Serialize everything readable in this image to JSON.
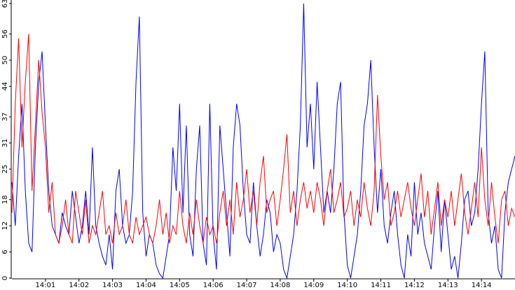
{
  "chart_data": {
    "type": "line",
    "x": [
      0,
      0.1,
      0.2,
      0.3,
      0.4,
      0.5,
      0.6,
      0.7,
      0.8,
      0.9,
      1,
      1.1,
      1.2,
      1.3,
      1.4,
      1.5,
      1.6,
      1.7,
      1.8,
      1.9,
      2,
      2.1,
      2.2,
      2.3,
      2.4,
      2.5,
      2.6,
      2.7,
      2.8,
      2.9,
      3,
      3.1,
      3.2,
      3.3,
      3.4,
      3.5,
      3.6,
      3.7,
      3.8,
      3.9,
      4,
      4.1,
      4.2,
      4.3,
      4.4,
      4.5,
      4.6,
      4.7,
      4.8,
      4.9,
      5,
      5.1,
      5.2,
      5.3,
      5.4,
      5.5,
      5.6,
      5.7,
      5.8,
      5.9,
      6,
      6.1,
      6.2,
      6.3,
      6.4,
      6.5,
      6.6,
      6.7,
      6.8,
      6.9,
      7,
      7.1,
      7.2,
      7.3,
      7.4,
      7.5,
      7.6,
      7.7,
      7.8,
      7.9,
      8,
      8.1,
      8.2,
      8.3,
      8.4,
      8.5,
      8.6,
      8.7,
      8.8,
      8.9,
      9,
      9.1,
      9.2,
      9.3,
      9.4,
      9.5,
      9.6,
      9.7,
      9.8,
      9.9,
      10,
      10.1,
      10.2,
      10.3,
      10.4,
      10.5,
      10.6,
      10.7,
      10.8,
      10.9,
      11,
      11.1,
      11.2,
      11.3,
      11.4,
      11.5,
      11.6,
      11.7,
      11.8,
      11.9,
      12,
      12.1,
      12.2,
      12.3,
      12.4,
      12.5,
      12.6,
      12.7,
      12.8,
      12.9,
      13,
      13.1,
      13.2,
      13.3,
      13.4,
      13.5,
      13.6,
      13.7,
      13.8,
      13.9,
      14,
      14.1,
      14.2,
      14.3,
      14.4,
      14.5,
      14.6,
      14.7,
      14.8,
      14.9,
      15
    ],
    "series": [
      {
        "color": "#0000ff",
        "values": [
          22,
          12,
          28,
          40,
          20,
          8,
          6,
          30,
          45,
          52,
          35,
          20,
          12,
          10,
          8,
          15,
          12,
          10,
          20,
          14,
          8,
          12,
          20,
          10,
          30,
          12,
          8,
          5,
          3,
          10,
          2,
          20,
          25,
          12,
          8,
          10,
          20,
          45,
          60,
          15,
          5,
          10,
          8,
          3,
          1,
          0,
          5,
          10,
          30,
          20,
          40,
          15,
          35,
          10,
          5,
          25,
          35,
          8,
          3,
          40,
          10,
          2,
          35,
          25,
          15,
          5,
          30,
          40,
          35,
          20,
          10,
          8,
          22,
          12,
          5,
          10,
          18,
          15,
          6,
          10,
          8,
          2,
          0,
          5,
          10,
          20,
          35,
          63,
          30,
          40,
          25,
          45,
          30,
          15,
          20,
          15,
          25,
          40,
          45,
          15,
          3,
          0,
          5,
          10,
          20,
          35,
          40,
          50,
          30,
          15,
          25,
          12,
          8,
          15,
          20,
          10,
          3,
          0,
          10,
          5,
          22,
          10,
          15,
          8,
          5,
          2,
          12,
          20,
          6,
          18,
          10,
          2,
          5,
          0,
          8,
          18,
          20,
          12,
          15,
          25,
          40,
          52,
          15,
          8,
          12,
          2,
          0,
          15,
          22,
          25,
          28
        ]
      },
      {
        "color": "#ff0000",
        "values": [
          15,
          40,
          55,
          30,
          45,
          56,
          20,
          35,
          50,
          38,
          30,
          15,
          22,
          10,
          8,
          12,
          18,
          10,
          8,
          20,
          15,
          10,
          18,
          8,
          12,
          10,
          15,
          20,
          10,
          12,
          8,
          15,
          10,
          12,
          18,
          10,
          8,
          14,
          10,
          12,
          14,
          10,
          8,
          12,
          18,
          10,
          15,
          8,
          12,
          10,
          20,
          12,
          8,
          15,
          10,
          18,
          12,
          8,
          14,
          10,
          12,
          8,
          15,
          20,
          12,
          18,
          10,
          22,
          14,
          18,
          25,
          15,
          20,
          12,
          22,
          28,
          15,
          18,
          20,
          12,
          18,
          25,
          33,
          15,
          20,
          12,
          18,
          22,
          16,
          20,
          15,
          22,
          18,
          12,
          20,
          25,
          15,
          18,
          22,
          14,
          16,
          20,
          12,
          18,
          14,
          22,
          16,
          12,
          20,
          42,
          28,
          18,
          22,
          12,
          15,
          20,
          14,
          18,
          22,
          16,
          12,
          18,
          24,
          14,
          20,
          10,
          16,
          22,
          12,
          18,
          14,
          20,
          12,
          18,
          24,
          15,
          10,
          16,
          22,
          14,
          30,
          18,
          12,
          22,
          14,
          8,
          18,
          20,
          12,
          16,
          14
        ]
      }
    ],
    "xlim": [
      0,
      15
    ],
    "xticks": [
      {
        "value": 1,
        "label": "14:01"
      },
      {
        "value": 2,
        "label": "14:02"
      },
      {
        "value": 3,
        "label": "14:03"
      },
      {
        "value": 4,
        "label": "14:04"
      },
      {
        "value": 5,
        "label": "14:05"
      },
      {
        "value": 6,
        "label": "14:06"
      },
      {
        "value": 7,
        "label": "14:07"
      },
      {
        "value": 8,
        "label": "14:08"
      },
      {
        "value": 9,
        "label": "14:09"
      },
      {
        "value": 10,
        "label": "14:10"
      },
      {
        "value": 11,
        "label": "14:11"
      },
      {
        "value": 12,
        "label": "14:12"
      },
      {
        "value": 13,
        "label": "14:13"
      },
      {
        "value": 14,
        "label": "14:14"
      }
    ],
    "ylim": [
      0,
      63
    ],
    "yticks": [
      0,
      6,
      12,
      18,
      25,
      31,
      37,
      44,
      50,
      56,
      63
    ]
  }
}
